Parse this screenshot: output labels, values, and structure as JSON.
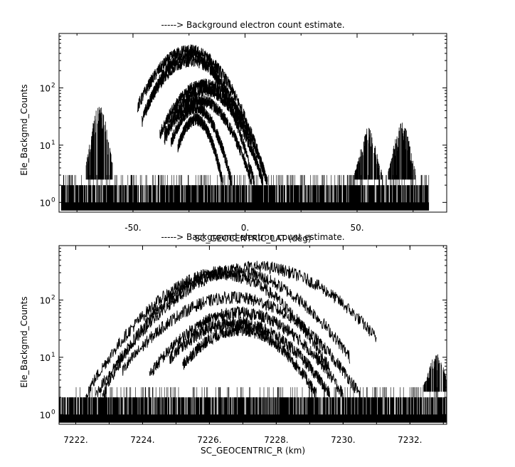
{
  "chart_data": [
    {
      "type": "line",
      "title": "-----> Background electron count estimate.",
      "xlabel": "SC_GEOCENTRIC_LAT (deg)",
      "ylabel": "Ele_Backgmd_Counts",
      "xlim": [
        -83,
        90
      ],
      "ylim_log10": [
        -0.17,
        2.95
      ],
      "yscale": "log",
      "grid": false,
      "x_ticks": [
        {
          "value": -50,
          "label": "-50."
        },
        {
          "value": 0,
          "label": "0."
        },
        {
          "value": 50,
          "label": "50."
        }
      ],
      "y_ticks": [
        {
          "exp": 0,
          "base": "10",
          "sup": "0"
        },
        {
          "exp": 1,
          "base": "10",
          "sup": "1"
        },
        {
          "exp": 2,
          "base": "10",
          "sup": "2"
        }
      ],
      "noise_floor": {
        "x_range": [
          -82,
          82
        ],
        "levels": [
          1,
          2,
          3
        ]
      },
      "spikes": [
        {
          "center": -65,
          "peak": 50
        },
        {
          "center": 55,
          "peak": 20
        },
        {
          "center": 70,
          "peak": 25
        }
      ],
      "series": [
        {
          "center": -25,
          "peak": 450,
          "x_range": [
            -48,
            10
          ]
        },
        {
          "center": -25,
          "peak": 380,
          "x_range": [
            -46,
            4
          ]
        },
        {
          "center": -24,
          "peak": 300,
          "x_range": [
            -45,
            8
          ]
        },
        {
          "center": -18,
          "peak": 115,
          "x_range": [
            -38,
            10
          ]
        },
        {
          "center": -18,
          "peak": 90,
          "x_range": [
            -36,
            8
          ]
        },
        {
          "center": -20,
          "peak": 60,
          "x_range": [
            -36,
            3
          ]
        },
        {
          "center": -22,
          "peak": 45,
          "x_range": [
            -33,
            -6
          ]
        },
        {
          "center": -22,
          "peak": 28,
          "x_range": [
            -30,
            -10
          ]
        }
      ]
    },
    {
      "type": "line",
      "title": "-----> Background electron count estimate.",
      "xlabel": "SC_GEOCENTRIC_R (km)",
      "ylabel": "Ele_Backgmd_Counts",
      "xlim": [
        7221.5,
        7233.1
      ],
      "ylim_log10": [
        -0.17,
        2.95
      ],
      "yscale": "log",
      "grid": false,
      "x_ticks": [
        {
          "value": 7222,
          "label": "7222."
        },
        {
          "value": 7224,
          "label": "7224."
        },
        {
          "value": 7226,
          "label": "7226."
        },
        {
          "value": 7228,
          "label": "7228."
        },
        {
          "value": 7230,
          "label": "7230."
        },
        {
          "value": 7232,
          "label": "7232."
        }
      ],
      "y_ticks": [
        {
          "exp": 0,
          "base": "10",
          "sup": "0"
        },
        {
          "exp": 1,
          "base": "10",
          "sup": "1"
        },
        {
          "exp": 2,
          "base": "10",
          "sup": "2"
        }
      ],
      "noise_floor": {
        "x_range": [
          7221.5,
          7233.1
        ],
        "levels": [
          1,
          2,
          3
        ]
      },
      "spikes": [
        {
          "center": 7232.8,
          "peak": 12
        }
      ],
      "series": [
        {
          "center": 7227.4,
          "peak": 380,
          "x_range": [
            7222.6,
            7231.0
          ]
        },
        {
          "center": 7226.6,
          "peak": 320,
          "x_range": [
            7222.3,
            7230.2
          ]
        },
        {
          "center": 7226.4,
          "peak": 280,
          "x_range": [
            7222.8,
            7229.6
          ]
        },
        {
          "center": 7226.7,
          "peak": 110,
          "x_range": [
            7223.4,
            7230.5
          ]
        },
        {
          "center": 7226.9,
          "peak": 60,
          "x_range": [
            7224.2,
            7230.0
          ]
        },
        {
          "center": 7226.8,
          "peak": 40,
          "x_range": [
            7224.8,
            7229.6
          ]
        },
        {
          "center": 7226.9,
          "peak": 30,
          "x_range": [
            7225.2,
            7229.2
          ]
        }
      ]
    }
  ]
}
